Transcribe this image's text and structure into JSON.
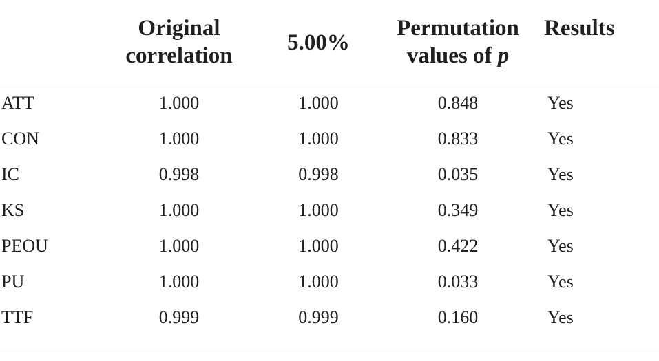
{
  "header": {
    "original_line1": "Original",
    "original_line2": "correlation",
    "pct": "5.00%",
    "perm_line1": "Permutation",
    "perm_line2_a": "values of ",
    "perm_line2_p": "p",
    "results": "Results"
  },
  "rows": [
    {
      "label": "ATT",
      "original": "1.000",
      "pct": "1.000",
      "perm": "0.848",
      "result": "Yes"
    },
    {
      "label": "CON",
      "original": "1.000",
      "pct": "1.000",
      "perm": "0.833",
      "result": "Yes"
    },
    {
      "label": "IC",
      "original": "0.998",
      "pct": "0.998",
      "perm": "0.035",
      "result": "Yes"
    },
    {
      "label": "KS",
      "original": "1.000",
      "pct": "1.000",
      "perm": "0.349",
      "result": "Yes"
    },
    {
      "label": "PEOU",
      "original": "1.000",
      "pct": "1.000",
      "perm": "0.422",
      "result": "Yes"
    },
    {
      "label": "PU",
      "original": "1.000",
      "pct": "1.000",
      "perm": "0.033",
      "result": "Yes"
    },
    {
      "label": "TTF",
      "original": "0.999",
      "pct": "0.999",
      "perm": "0.160",
      "result": "Yes"
    }
  ]
}
